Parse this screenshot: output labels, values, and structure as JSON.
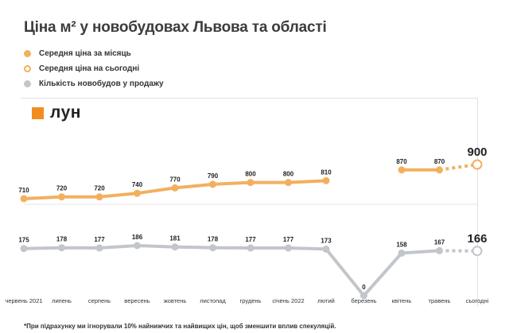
{
  "title": "Ціна м² у новобудовах Львова та області",
  "legend": [
    {
      "label": "Середня ціна за місяць",
      "style": "filled",
      "color": "#f2b05f"
    },
    {
      "label": "Середня ціна на сьогодні",
      "style": "hollow",
      "color": "#f2b05f"
    },
    {
      "label": "Кількість новобудов у продажу",
      "style": "filled",
      "color": "#c2c6cb"
    }
  ],
  "logo": {
    "text": "лун",
    "color": "#f28c1e"
  },
  "footnote": "*При підрахунку ми ігнорували 10% найнижчих та найвищих цін, щоб зменшити вплив спекуляцій.",
  "chart_data": {
    "type": "line",
    "title": "Ціна м² у новобудовах Львова та області",
    "categories": [
      "червень 2021",
      "липень",
      "серпень",
      "вересень",
      "жовтень",
      "листопад",
      "грудень",
      "січень 2022",
      "лютий",
      "березень",
      "квітень",
      "травень",
      "сьогодні"
    ],
    "series": [
      {
        "name": "Середня ціна за місяць",
        "color": "#f2b05f",
        "values": [
          710,
          720,
          720,
          740,
          770,
          790,
          800,
          800,
          810,
          null,
          870,
          870,
          900
        ],
        "labels": [
          "710",
          "720",
          "720",
          "740",
          "770",
          "790",
          "800",
          "800",
          "810",
          "",
          "870",
          "870",
          "900"
        ]
      },
      {
        "name": "Кількість новобудов у продажу",
        "color": "#c2c6cb",
        "values": [
          175,
          178,
          177,
          186,
          181,
          178,
          177,
          177,
          173,
          0,
          158,
          167,
          166
        ],
        "labels": [
          "175",
          "178",
          "177",
          "186",
          "181",
          "178",
          "177",
          "177",
          "173",
          "0",
          "158",
          "167",
          "166"
        ]
      }
    ],
    "today_label": "сьогодні",
    "xlabel": "",
    "ylabel": ""
  }
}
